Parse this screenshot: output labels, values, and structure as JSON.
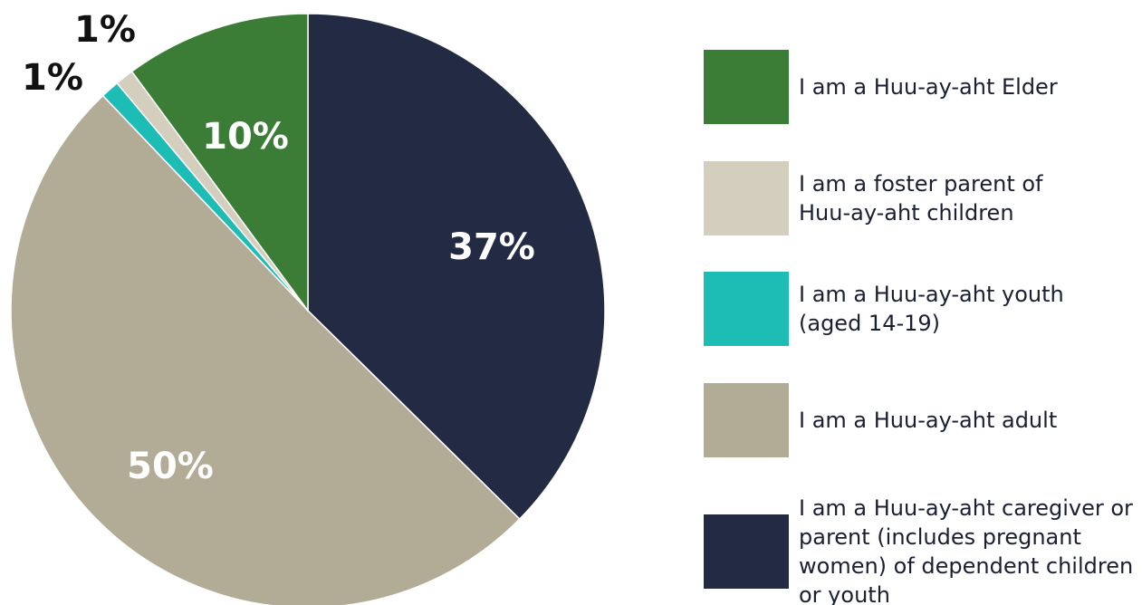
{
  "chart_data": {
    "type": "pie",
    "categories": [
      "I am a Huu-ay-aht Elder",
      "I am a foster parent of Huu-ay-aht children",
      "I am a Huu-ay-aht youth (aged 14-19)",
      "I am a Huu-ay-aht adult",
      "I am a Huu-ay-aht caregiver or parent (includes pregnant women) of dependent children or youth"
    ],
    "values": [
      10,
      1,
      1,
      50,
      37
    ],
    "value_labels": [
      "10%",
      "1%",
      "1%",
      "50%",
      "37%"
    ],
    "colors": [
      "#3b7d36",
      "#d4cebf",
      "#1dbdb6",
      "#b2ab96",
      "#232a44"
    ]
  }
}
